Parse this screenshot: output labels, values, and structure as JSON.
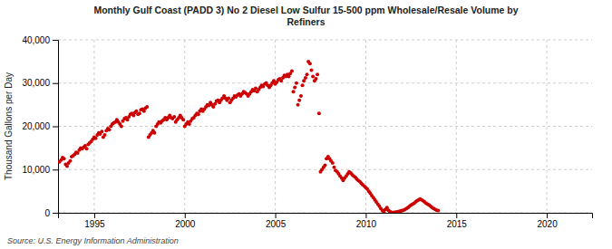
{
  "chart_data": {
    "type": "scatter",
    "title": "Monthly Gulf Coast (PADD 3) No 2 Diesel Low Sulfur 15-500 ppm Wholesale/Resale Volume by\nRefiners",
    "ylabel": "Thousand Gallons per Day",
    "annotations": [
      "Source: U.S. Energy Information Administration"
    ],
    "xlim": [
      1993.0,
      2022.5
    ],
    "ylim": [
      0,
      40000
    ],
    "xticks": [
      1995,
      2000,
      2005,
      2010,
      2015,
      2020
    ],
    "yticks": [
      0,
      {
        "value": 10000,
        "label": "10,000"
      },
      {
        "value": 20000,
        "label": "20,000"
      },
      {
        "value": 30000,
        "label": "30,000"
      },
      {
        "value": 40000,
        "label": "40,000"
      }
    ],
    "grid": true,
    "series": [
      {
        "color": "#cc0000",
        "x": [
          1993.08,
          1993.17,
          1993.25,
          1993.33,
          1993.42,
          1993.5,
          1993.58,
          1993.67,
          1993.75,
          1993.83,
          1993.92,
          1994.0,
          1994.08,
          1994.17,
          1994.25,
          1994.33,
          1994.42,
          1994.5,
          1994.58,
          1994.67,
          1994.75,
          1994.83,
          1994.92,
          1995.0,
          1995.08,
          1995.17,
          1995.25,
          1995.33,
          1995.42,
          1995.5,
          1995.58,
          1995.67,
          1995.75,
          1995.83,
          1995.92,
          1996.0,
          1996.08,
          1996.17,
          1996.25,
          1996.33,
          1996.42,
          1996.5,
          1996.58,
          1996.67,
          1996.75,
          1996.83,
          1996.92,
          1997.0,
          1997.08,
          1997.17,
          1997.25,
          1997.33,
          1997.42,
          1997.5,
          1997.58,
          1997.67,
          1997.75,
          1997.83,
          1997.92,
          1998.0,
          1998.08,
          1998.17,
          1998.25,
          1998.33,
          1998.42,
          1998.5,
          1998.58,
          1998.67,
          1998.75,
          1998.83,
          1998.92,
          1999.0,
          1999.08,
          1999.17,
          1999.25,
          1999.33,
          1999.42,
          1999.5,
          1999.58,
          1999.67,
          1999.75,
          1999.83,
          1999.92,
          2000.0,
          2000.08,
          2000.17,
          2000.25,
          2000.33,
          2000.42,
          2000.5,
          2000.58,
          2000.67,
          2000.75,
          2000.83,
          2000.92,
          2001.0,
          2001.08,
          2001.17,
          2001.25,
          2001.33,
          2001.42,
          2001.5,
          2001.58,
          2001.67,
          2001.75,
          2001.83,
          2001.92,
          2002.0,
          2002.08,
          2002.17,
          2002.25,
          2002.33,
          2002.42,
          2002.5,
          2002.58,
          2002.67,
          2002.75,
          2002.83,
          2002.92,
          2003.0,
          2003.08,
          2003.17,
          2003.25,
          2003.33,
          2003.42,
          2003.5,
          2003.58,
          2003.67,
          2003.75,
          2003.83,
          2003.92,
          2004.0,
          2004.08,
          2004.17,
          2004.25,
          2004.33,
          2004.42,
          2004.5,
          2004.58,
          2004.67,
          2004.75,
          2004.83,
          2004.92,
          2005.0,
          2005.08,
          2005.17,
          2005.25,
          2005.33,
          2005.42,
          2005.5,
          2005.58,
          2005.67,
          2005.75,
          2005.83,
          2005.92,
          2006.0,
          2006.08,
          2006.17,
          2006.25,
          2006.33,
          2006.42,
          2006.5,
          2006.58,
          2006.67,
          2006.75,
          2006.83,
          2006.92,
          2007.0,
          2007.08,
          2007.17,
          2007.25,
          2007.33,
          2007.42
        ],
        "values": [
          11800,
          12200,
          12800,
          12500,
          11200,
          10800,
          11500,
          12000,
          13000,
          13200,
          13500,
          14000,
          13800,
          14500,
          15000,
          14800,
          15200,
          15500,
          14800,
          15800,
          16200,
          16500,
          17000,
          17500,
          17200,
          18000,
          18500,
          18200,
          18800,
          17500,
          18000,
          19000,
          19500,
          19200,
          20000,
          20500,
          20800,
          21000,
          21500,
          21000,
          20500,
          20000,
          21200,
          21800,
          22000,
          21500,
          22200,
          22800,
          23000,
          22500,
          23200,
          23500,
          22800,
          23000,
          23800,
          24000,
          23500,
          24200,
          24500,
          17500,
          18000,
          18500,
          19000,
          18500,
          20000,
          20500,
          21000,
          20800,
          21200,
          21500,
          22000,
          21500,
          22000,
          22500,
          22000,
          21800,
          22200,
          21000,
          21500,
          22000,
          22500,
          22000,
          21500,
          20000,
          20500,
          21000,
          20500,
          21200,
          21800,
          22000,
          22500,
          23000,
          22800,
          23500,
          24000,
          23500,
          24000,
          24500,
          25000,
          24800,
          25500,
          25000,
          24500,
          25200,
          25800,
          26000,
          25500,
          26000,
          26500,
          27000,
          26500,
          26000,
          26500,
          25500,
          26000,
          26500,
          27000,
          26800,
          27200,
          27500,
          27000,
          27500,
          28000,
          27800,
          27500,
          27000,
          27500,
          28000,
          28500,
          28200,
          28800,
          28000,
          28500,
          29000,
          29500,
          29200,
          29800,
          30000,
          29500,
          29000,
          29500,
          30000,
          30500,
          29800,
          30200,
          30800,
          31000,
          30500,
          31200,
          31800,
          31500,
          32000,
          31500,
          32200,
          32800,
          28000,
          29000,
          30000,
          25000,
          26000,
          27000,
          29500,
          30500,
          31200,
          32000,
          35000,
          34500,
          33000,
          31500,
          30500,
          31000,
          32000,
          23000
        ]
      },
      {
        "color": "#cc0000",
        "x": [
          2007.5,
          2007.58,
          2007.67,
          2007.75,
          2007.83,
          2007.92,
          2008.0,
          2008.08,
          2008.17,
          2008.25,
          2008.33,
          2008.42,
          2008.5,
          2008.58,
          2008.67,
          2008.75,
          2008.83,
          2008.92,
          2009.0,
          2009.08,
          2009.17,
          2009.25,
          2009.33,
          2009.42,
          2009.5,
          2009.58,
          2009.67,
          2009.75,
          2009.83,
          2009.92,
          2010.0,
          2010.08,
          2010.17,
          2010.25,
          2010.33,
          2010.42,
          2010.5,
          2010.58,
          2010.67,
          2010.75,
          2010.83,
          2010.92,
          2011.0,
          2011.08,
          2011.17,
          2011.25,
          2011.33,
          2011.42,
          2011.5,
          2011.58,
          2011.67,
          2011.75,
          2011.83,
          2011.92,
          2012.0,
          2012.08,
          2012.17,
          2012.25,
          2012.33,
          2012.42,
          2012.5,
          2012.58,
          2012.67,
          2012.75,
          2012.83,
          2012.92,
          2013.0,
          2013.08,
          2013.17,
          2013.25,
          2013.33,
          2013.42,
          2013.5,
          2013.58,
          2013.67,
          2013.75,
          2013.83,
          2013.92,
          2014.0
        ],
        "values": [
          9500,
          10000,
          10500,
          11000,
          12500,
          13000,
          12500,
          12000,
          11500,
          10500,
          9800,
          9500,
          9000,
          8500,
          8000,
          7500,
          8000,
          8500,
          9000,
          9500,
          9200,
          8800,
          8500,
          8200,
          7800,
          7500,
          7200,
          6800,
          6500,
          6200,
          5800,
          5500,
          5000,
          4500,
          4000,
          3500,
          3000,
          2500,
          2000,
          1500,
          1000,
          500,
          200,
          800,
          1200,
          600,
          300,
          100,
          50,
          80,
          150,
          200,
          300,
          400,
          500,
          600,
          800,
          1000,
          1200,
          1500,
          1800,
          2000,
          2200,
          2500,
          2800,
          3000,
          3200,
          3000,
          2800,
          2500,
          2200,
          2000,
          1800,
          1500,
          1200,
          1000,
          800,
          600,
          500
        ]
      }
    ]
  }
}
